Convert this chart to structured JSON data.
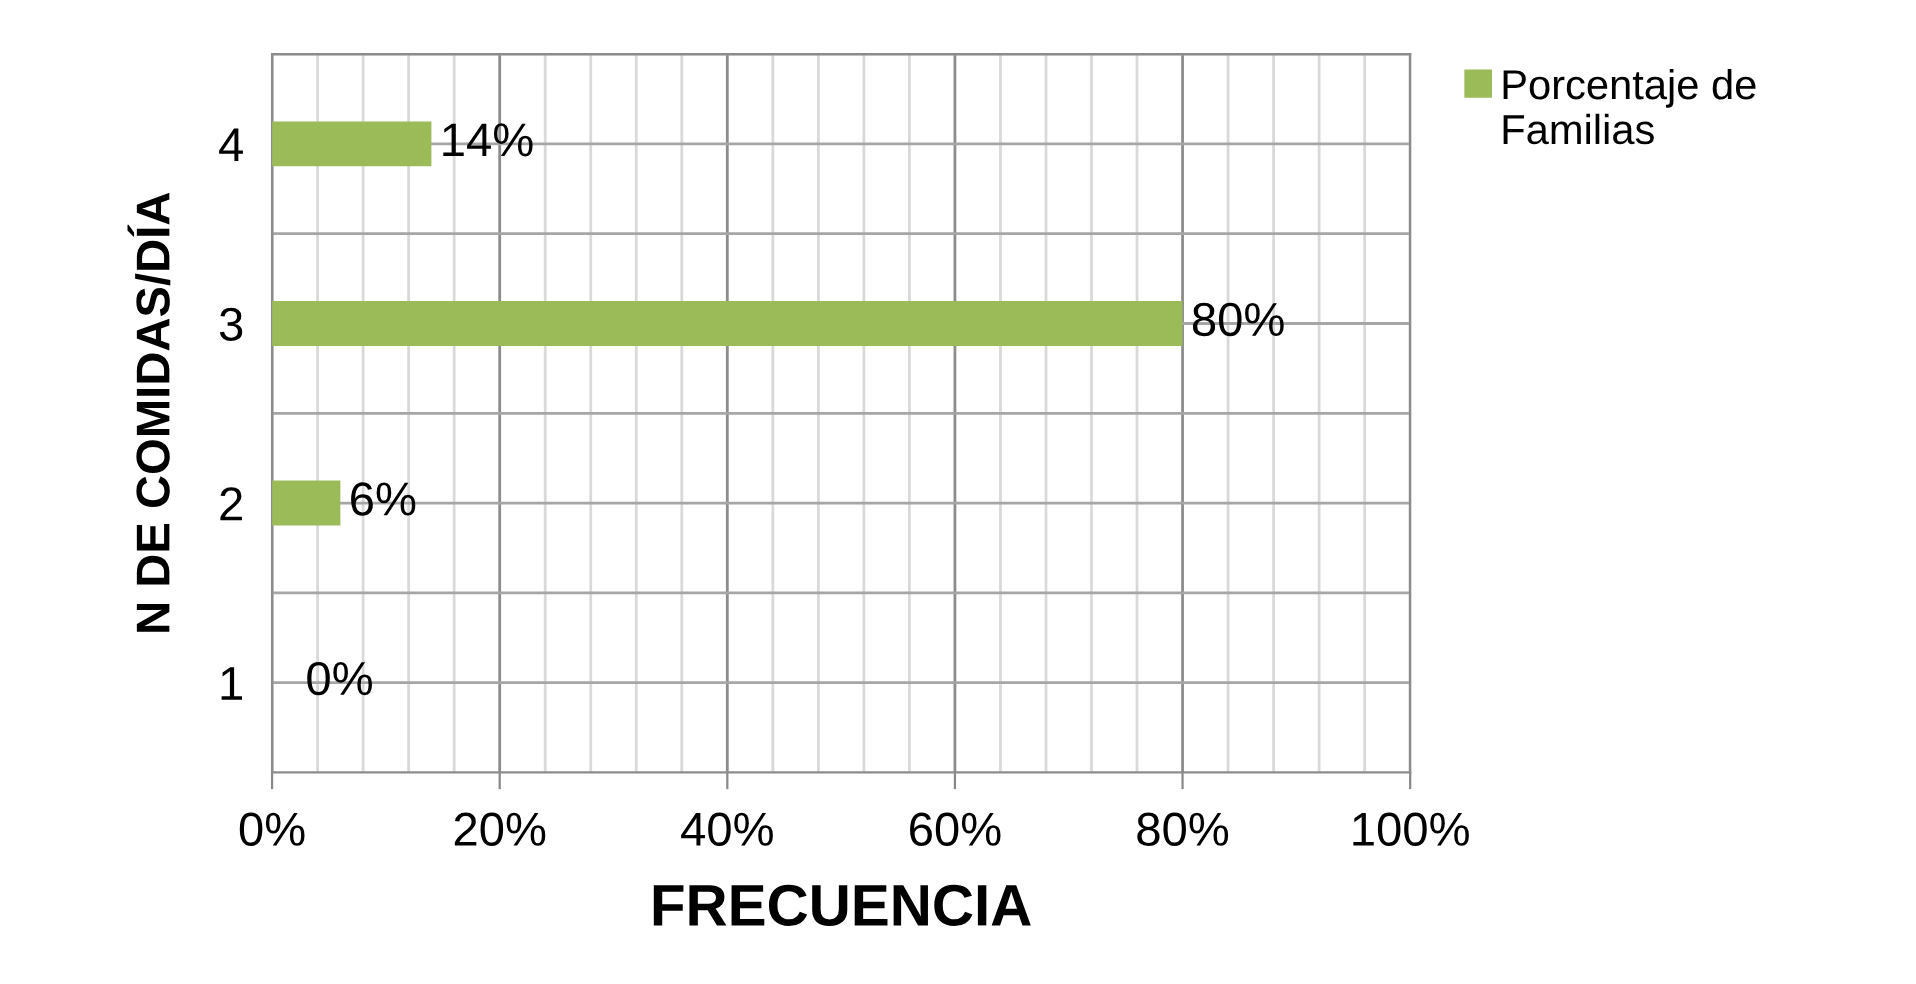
{
  "chart_data": {
    "type": "bar",
    "orientation": "horizontal",
    "xlabel": "FRECUENCIA",
    "ylabel": "N DE COMIDAS/DÍA",
    "categories": [
      "4",
      "3",
      "2",
      "1"
    ],
    "series": [
      {
        "name": "Porcentaje de Familias",
        "color": "#9bbb59",
        "values": [
          14,
          80,
          6,
          0
        ],
        "value_labels": [
          "14%",
          "80%",
          "6%",
          "0%"
        ]
      }
    ],
    "xlim": [
      0,
      100
    ],
    "xticks": [
      {
        "value": 0,
        "label": "0%"
      },
      {
        "value": 20,
        "label": "20%"
      },
      {
        "value": 40,
        "label": "40%"
      },
      {
        "value": 60,
        "label": "60%"
      },
      {
        "value": 80,
        "label": "80%"
      },
      {
        "value": 100,
        "label": "100%"
      }
    ],
    "grid": true,
    "legend": "top right"
  }
}
